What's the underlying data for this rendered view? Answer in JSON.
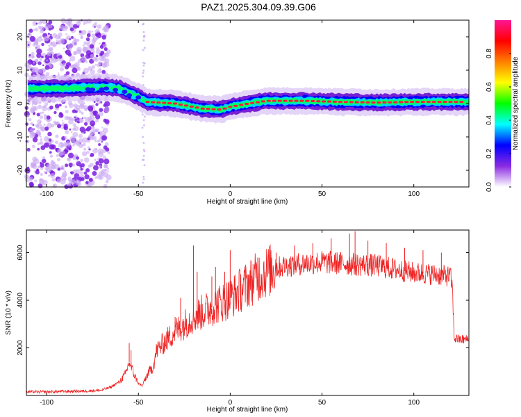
{
  "figure": {
    "title": "PAZ1.2025.304.09.39.G06"
  },
  "chart_data": [
    {
      "type": "heatmap",
      "title": "PAZ1.2025.304.09.39.G06",
      "xlabel": "Height of straight line (km)",
      "ylabel": "Frequency (Hz)",
      "xlim": [
        -111,
        130
      ],
      "ylim": [
        -25,
        25
      ],
      "xticks": [
        -100,
        -50,
        0,
        50,
        100
      ],
      "yticks": [
        -20,
        -10,
        0,
        10,
        20
      ],
      "colorbar": {
        "label": "Normalized spectral amplitude",
        "range": [
          0.0,
          1.0
        ],
        "ticks": [
          0.0,
          0.2,
          0.4,
          0.6,
          0.8
        ],
        "tick_labels": [
          "0.0",
          "0.2",
          "0.4",
          "0.6",
          "0.8"
        ],
        "colors": [
          "#ffffff",
          "#8a2be2",
          "#0000ff",
          "#00ffff",
          "#00ff00",
          "#ffff00",
          "#ff8000",
          "#ff0000",
          "#ff1493"
        ]
      },
      "ridge": {
        "x": [
          -110,
          -90,
          -70,
          -60,
          -50,
          -45,
          -30,
          -15,
          -5,
          0,
          10,
          20,
          40,
          60,
          80,
          100,
          130
        ],
        "frequency": [
          4.5,
          4.5,
          5,
          4.5,
          2,
          0.5,
          0,
          -1.5,
          -1.8,
          -1,
          0,
          0.8,
          0.8,
          0.5,
          0.3,
          0.5,
          0.5
        ]
      }
    },
    {
      "type": "line",
      "xlabel": "Height of straight line (km)",
      "ylabel": "SNR (10 * v/v)",
      "xlim": [
        -111,
        130
      ],
      "ylim": [
        0,
        6950
      ],
      "xticks": [
        -100,
        -50,
        0,
        50,
        100
      ],
      "yticks": [
        2000,
        4000,
        6000
      ],
      "series": [
        {
          "name": "SNR",
          "color": "#ee2222",
          "x": [
            -110,
            -100,
            -90,
            -80,
            -70,
            -65,
            -60,
            -57,
            -55,
            -53,
            -50,
            -48,
            -45,
            -42,
            -40,
            -35,
            -30,
            -25,
            -20,
            -15,
            -10,
            -5,
            0,
            5,
            10,
            15,
            20,
            25,
            30,
            35,
            40,
            50,
            60,
            70,
            80,
            90,
            100,
            110,
            115,
            120,
            121,
            122,
            125,
            130
          ],
          "values": [
            150,
            150,
            170,
            180,
            220,
            350,
            600,
            900,
            1400,
            1000,
            500,
            400,
            900,
            1200,
            1900,
            2300,
            2700,
            3000,
            3300,
            3500,
            3700,
            3900,
            4100,
            4400,
            4700,
            5000,
            5200,
            5350,
            5450,
            5500,
            5550,
            5600,
            5550,
            5500,
            5450,
            5300,
            5150,
            5100,
            5050,
            5000,
            4500,
            2400,
            2350,
            2350
          ]
        }
      ],
      "spikes": {
        "x": [
          -55,
          -54,
          -30,
          -27,
          -20,
          -18,
          -10,
          -8,
          -3,
          0,
          15,
          25,
          35,
          45,
          55,
          65,
          68,
          75,
          85,
          95,
          105,
          115
        ],
        "values": [
          2200,
          1900,
          3300,
          4100,
          6300,
          5200,
          5000,
          5400,
          5200,
          6100,
          5800,
          6000,
          6300,
          6400,
          6600,
          6800,
          6900,
          6500,
          6400,
          6200,
          6100,
          6000
        ]
      }
    }
  ]
}
